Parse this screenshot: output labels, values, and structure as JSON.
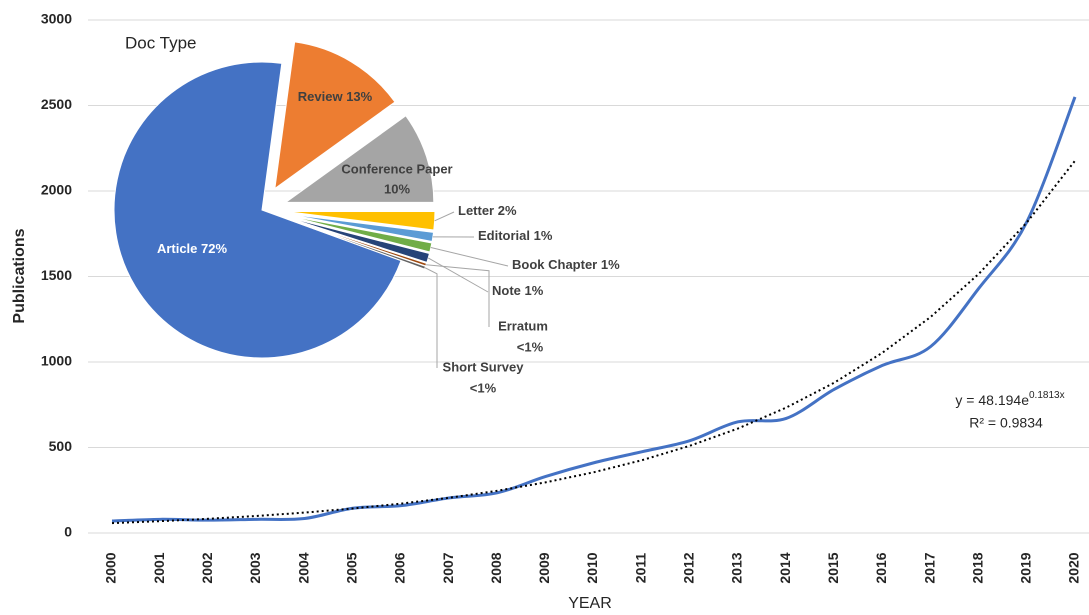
{
  "chart_data": [
    {
      "type": "line",
      "x_label": "YEAR",
      "y_label": "Publications",
      "categories": [
        "2000",
        "2001",
        "2002",
        "2003",
        "2004",
        "2005",
        "2006",
        "2007",
        "2008",
        "2009",
        "2010",
        "2011",
        "2012",
        "2013",
        "2014",
        "2015",
        "2016",
        "2017",
        "2018",
        "2019",
        "2020"
      ],
      "series": [
        {
          "color": "#4472c4",
          "style": "smooth",
          "values": [
            70,
            80,
            75,
            80,
            85,
            145,
            160,
            205,
            235,
            330,
            410,
            475,
            540,
            650,
            670,
            840,
            980,
            1090,
            1430,
            1820,
            2550
          ]
        },
        {
          "color": "#000000",
          "style": "dotted",
          "values": [
            57.8,
            69.3,
            83.1,
            99.6,
            119.4,
            143.2,
            171.7,
            205.8,
            246.8,
            295.9,
            354.8,
            425.3,
            510,
            611,
            733,
            879,
            1054,
            1263,
            1515,
            1816,
            2177
          ]
        }
      ],
      "annotations": {
        "equation_base": "y = 48.194e",
        "equation_exponent": "0.1813x",
        "r_squared": "R² = 0.9834"
      },
      "ylim": [
        0,
        3000
      ],
      "yticks": [
        0,
        500,
        1000,
        1500,
        2000,
        2500,
        3000
      ],
      "grid": true
    },
    {
      "type": "pie",
      "title": "Doc Type",
      "categories": [
        "Article",
        "Review",
        "Conference Paper",
        "Letter",
        "Editorial",
        "Book Chapter",
        "Note",
        "Erratum",
        "Short Survey"
      ],
      "values": [
        72,
        13,
        10,
        2,
        1,
        1,
        1,
        0.3,
        0.3
      ],
      "value_labels": [
        "72%",
        "13%",
        "10%",
        "2%",
        "1%",
        "1%",
        "1%",
        "<1%",
        "<1%"
      ],
      "colors": [
        "#4472c4",
        "#ed7d31",
        "#a5a5a5",
        "#ffc000",
        "#5b9bd5",
        "#70ad47",
        "#264478",
        "#9e480e",
        "#636363"
      ]
    }
  ]
}
